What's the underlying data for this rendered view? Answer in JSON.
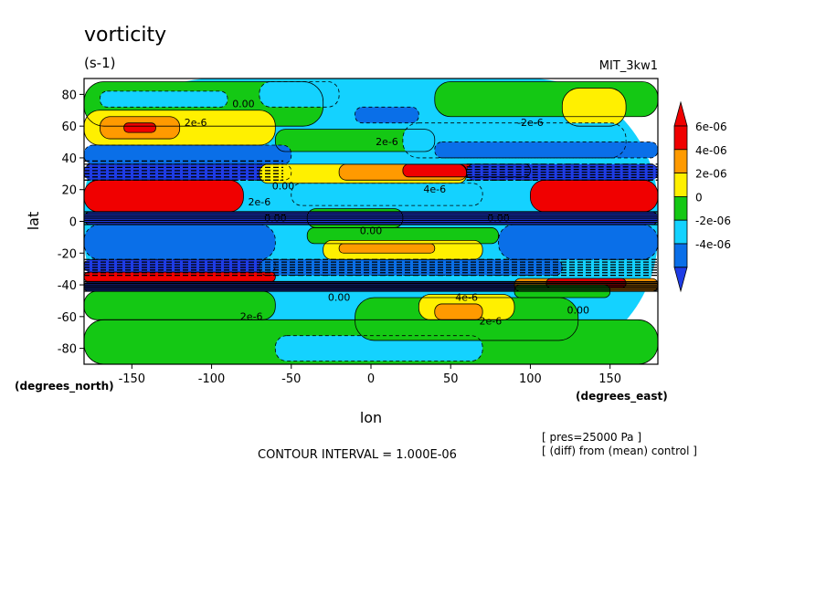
{
  "chart_data": {
    "type": "heatmap",
    "title": "vorticity",
    "units": "(s-1)",
    "model": "MIT_3kw1",
    "xlabel": "lon",
    "ylabel": "lat",
    "x_units": "(degrees_east)",
    "y_units": "(degrees_north)",
    "xlim": [
      -180,
      180
    ],
    "ylim": [
      -90,
      90
    ],
    "x_ticks": [
      -150,
      -100,
      -50,
      0,
      50,
      100,
      150
    ],
    "y_ticks": [
      80,
      60,
      40,
      20,
      0,
      -20,
      -40,
      -60,
      -80
    ],
    "x_tick_labels": [
      "-150",
      "-100",
      "-50",
      "0",
      "50",
      "100",
      "150"
    ],
    "y_tick_labels": [
      "80",
      "60",
      "40",
      "20",
      "0",
      "-20",
      "-40",
      "-60",
      "-80"
    ],
    "colorbar": {
      "levels": [
        -4e-06,
        -2e-06,
        0,
        2e-06,
        4e-06,
        6e-06
      ],
      "labels": [
        "-4e-06",
        "-2e-06",
        "0",
        "2e-06",
        "4e-06",
        "6e-06"
      ],
      "colors": [
        "#0a6fe8",
        "#14d2ff",
        "#14c814",
        "#fff000",
        "#ff9a00",
        "#f00000"
      ],
      "extend_colors": {
        "low": "#1e3ce6",
        "high": "#f00000"
      }
    },
    "contour_interval_text": "CONTOUR INTERVAL = 1.000E-06",
    "notes": [
      "[ pres=25000 Pa ]",
      "[ (diff) from (mean) control ]"
    ],
    "contour_labels": [
      {
        "text": "0.00",
        "lon": -80,
        "lat": 72
      },
      {
        "text": "2e-6",
        "lon": -110,
        "lat": 60
      },
      {
        "text": "0.00",
        "lon": -55,
        "lat": 20
      },
      {
        "text": "2e-6",
        "lon": -70,
        "lat": 10
      },
      {
        "text": "0.00",
        "lon": -60,
        "lat": 0
      },
      {
        "text": "2e-6",
        "lon": 10,
        "lat": 48
      },
      {
        "text": "4e-6",
        "lon": 40,
        "lat": 18
      },
      {
        "text": "0.00",
        "lon": 0,
        "lat": -8
      },
      {
        "text": "0.00",
        "lon": 80,
        "lat": 0
      },
      {
        "text": "-2e-6",
        "lon": 100,
        "lat": 60
      },
      {
        "text": "4e-6",
        "lon": 60,
        "lat": -50
      },
      {
        "text": "2e-6",
        "lon": 75,
        "lat": -65
      },
      {
        "text": "0.00",
        "lon": -20,
        "lat": -50
      },
      {
        "text": "2e-6",
        "lon": -75,
        "lat": -62
      },
      {
        "text": "0.00",
        "lon": 130,
        "lat": -58
      }
    ],
    "field_regions": [
      {
        "level": -2e-06,
        "lon": [
          -180,
          180
        ],
        "lat": [
          -90,
          90
        ]
      },
      {
        "level": 0,
        "lon": [
          -180,
          180
        ],
        "lat": [
          -90,
          -62
        ]
      },
      {
        "level": -2e-06,
        "lon": [
          -60,
          70
        ],
        "lat": [
          -88,
          -72
        ]
      },
      {
        "level": 0,
        "lon": [
          -180,
          -30
        ],
        "lat": [
          60,
          88
        ]
      },
      {
        "level": -2e-06,
        "lon": [
          -70,
          -20
        ],
        "lat": [
          72,
          88
        ]
      },
      {
        "level": 0,
        "lon": [
          40,
          180
        ],
        "lat": [
          66,
          88
        ]
      },
      {
        "level": 2e-06,
        "lon": [
          120,
          160
        ],
        "lat": [
          60,
          84
        ]
      },
      {
        "level": -2e-06,
        "lon": [
          -170,
          -90
        ],
        "lat": [
          72,
          82
        ]
      },
      {
        "level": 2e-06,
        "lon": [
          -180,
          -60
        ],
        "lat": [
          48,
          70
        ]
      },
      {
        "level": 4e-06,
        "lon": [
          -170,
          -120
        ],
        "lat": [
          52,
          66
        ]
      },
      {
        "level": 6e-06,
        "lon": [
          -155,
          -135
        ],
        "lat": [
          56,
          62
        ]
      },
      {
        "level": 0,
        "lon": [
          -60,
          40
        ],
        "lat": [
          44,
          58
        ]
      },
      {
        "level": -2e-06,
        "lon": [
          20,
          160
        ],
        "lat": [
          40,
          62
        ]
      },
      {
        "level": -4e-06,
        "lon": [
          -10,
          30
        ],
        "lat": [
          62,
          72
        ]
      },
      {
        "level": -4e-06,
        "lon": [
          40,
          180
        ],
        "lat": [
          40,
          50
        ]
      },
      {
        "level": -4e-06,
        "lon": [
          -180,
          -50
        ],
        "lat": [
          36,
          48
        ]
      },
      {
        "level": -8e-06,
        "lon": [
          -180,
          -50
        ],
        "lat": [
          26,
          36
        ]
      },
      {
        "level": 8e-06,
        "lon": [
          -180,
          -80
        ],
        "lat": [
          6,
          26
        ]
      },
      {
        "level": 2e-06,
        "lon": [
          -70,
          60
        ],
        "lat": [
          24,
          36
        ]
      },
      {
        "level": 4e-06,
        "lon": [
          -20,
          60
        ],
        "lat": [
          26,
          36
        ]
      },
      {
        "level": 8e-06,
        "lon": [
          20,
          100
        ],
        "lat": [
          28,
          36
        ]
      },
      {
        "level": -8e-06,
        "lon": [
          60,
          180
        ],
        "lat": [
          26,
          36
        ]
      },
      {
        "level": 8e-06,
        "lon": [
          100,
          180
        ],
        "lat": [
          6,
          26
        ]
      },
      {
        "level": -2e-06,
        "lon": [
          -50,
          70
        ],
        "lat": [
          10,
          24
        ]
      },
      {
        "level": 0,
        "lon": [
          -40,
          20
        ],
        "lat": [
          -4,
          8
        ]
      },
      {
        "level": -8e-06,
        "lon": [
          -180,
          180
        ],
        "lat": [
          -2,
          6
        ]
      },
      {
        "level": -4e-06,
        "lon": [
          -180,
          -60
        ],
        "lat": [
          -24,
          -2
        ]
      },
      {
        "level": -4e-06,
        "lon": [
          80,
          180
        ],
        "lat": [
          -24,
          -2
        ]
      },
      {
        "level": 0,
        "lon": [
          -40,
          80
        ],
        "lat": [
          -14,
          -4
        ]
      },
      {
        "level": 2e-06,
        "lon": [
          -30,
          70
        ],
        "lat": [
          -24,
          -12
        ]
      },
      {
        "level": 4e-06,
        "lon": [
          -20,
          40
        ],
        "lat": [
          -20,
          -14
        ]
      },
      {
        "level": -8e-06,
        "lon": [
          -180,
          -60
        ],
        "lat": [
          -32,
          -24
        ]
      },
      {
        "level": -4e-06,
        "lon": [
          -70,
          120
        ],
        "lat": [
          -34,
          -24
        ]
      },
      {
        "level": 8e-06,
        "lon": [
          -180,
          -60
        ],
        "lat": [
          -38,
          -32
        ]
      },
      {
        "level": -8e-06,
        "lon": [
          -180,
          180
        ],
        "lat": [
          -44,
          -38
        ]
      },
      {
        "level": 4e-06,
        "lon": [
          90,
          180
        ],
        "lat": [
          -44,
          -36
        ]
      },
      {
        "level": 8e-06,
        "lon": [
          110,
          160
        ],
        "lat": [
          -42,
          -36
        ]
      },
      {
        "level": 0,
        "lon": [
          -180,
          -60
        ],
        "lat": [
          -62,
          -44
        ]
      },
      {
        "level": 0,
        "lon": [
          -10,
          130
        ],
        "lat": [
          -75,
          -48
        ]
      },
      {
        "level": 2e-06,
        "lon": [
          30,
          90
        ],
        "lat": [
          -62,
          -46
        ]
      },
      {
        "level": 4e-06,
        "lon": [
          40,
          70
        ],
        "lat": [
          -62,
          -52
        ]
      },
      {
        "level": 0,
        "lon": [
          90,
          150
        ],
        "lat": [
          -48,
          -40
        ]
      }
    ]
  }
}
